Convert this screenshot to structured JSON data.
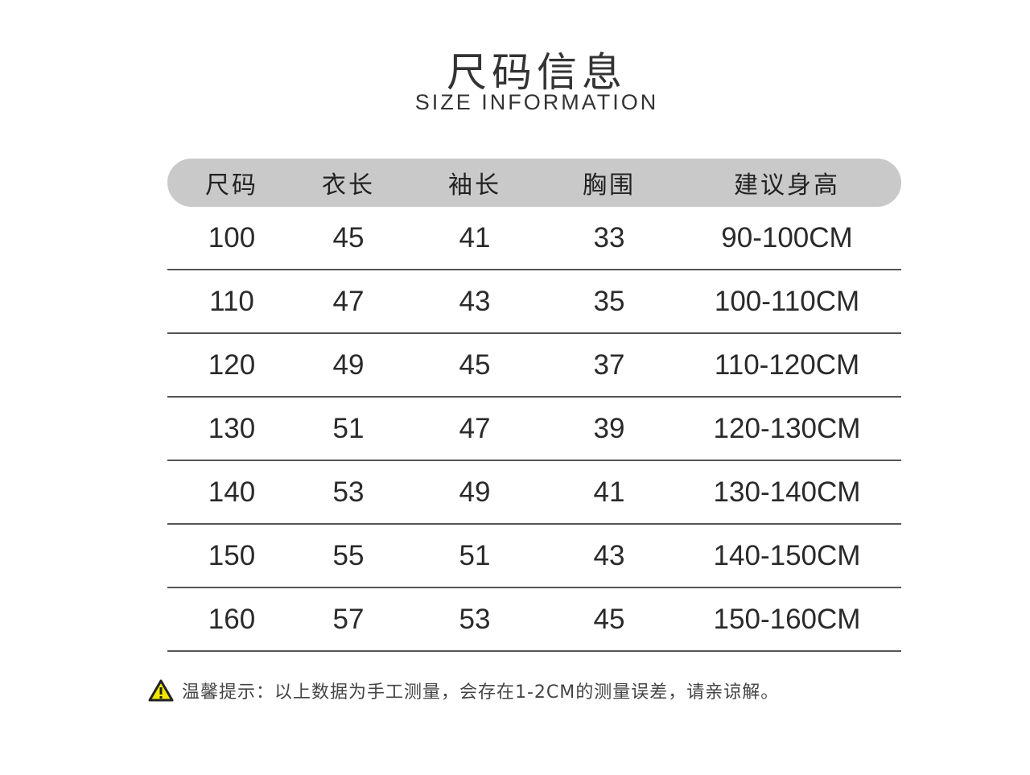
{
  "title": "尺码信息",
  "subtitle": "SIZE INFORMATION",
  "table": {
    "headers": [
      "尺码",
      "衣长",
      "袖长",
      "胸围",
      "建议身高"
    ],
    "rows": [
      [
        "100",
        "45",
        "41",
        "33",
        "90-100CM"
      ],
      [
        "110",
        "47",
        "43",
        "35",
        "100-110CM"
      ],
      [
        "120",
        "49",
        "45",
        "37",
        "110-120CM"
      ],
      [
        "130",
        "51",
        "47",
        "39",
        "120-130CM"
      ],
      [
        "140",
        "53",
        "49",
        "41",
        "130-140CM"
      ],
      [
        "150",
        "55",
        "51",
        "43",
        "140-150CM"
      ],
      [
        "160",
        "57",
        "53",
        "45",
        "150-160CM"
      ]
    ]
  },
  "note": {
    "icon": "warning-icon",
    "text": "温馨提示：以上数据为手工测量，会存在1-2CM的测量误差，请亲谅解。"
  },
  "colors": {
    "header_bg": "#c9c9c9",
    "warning_fill": "#f2e600"
  }
}
